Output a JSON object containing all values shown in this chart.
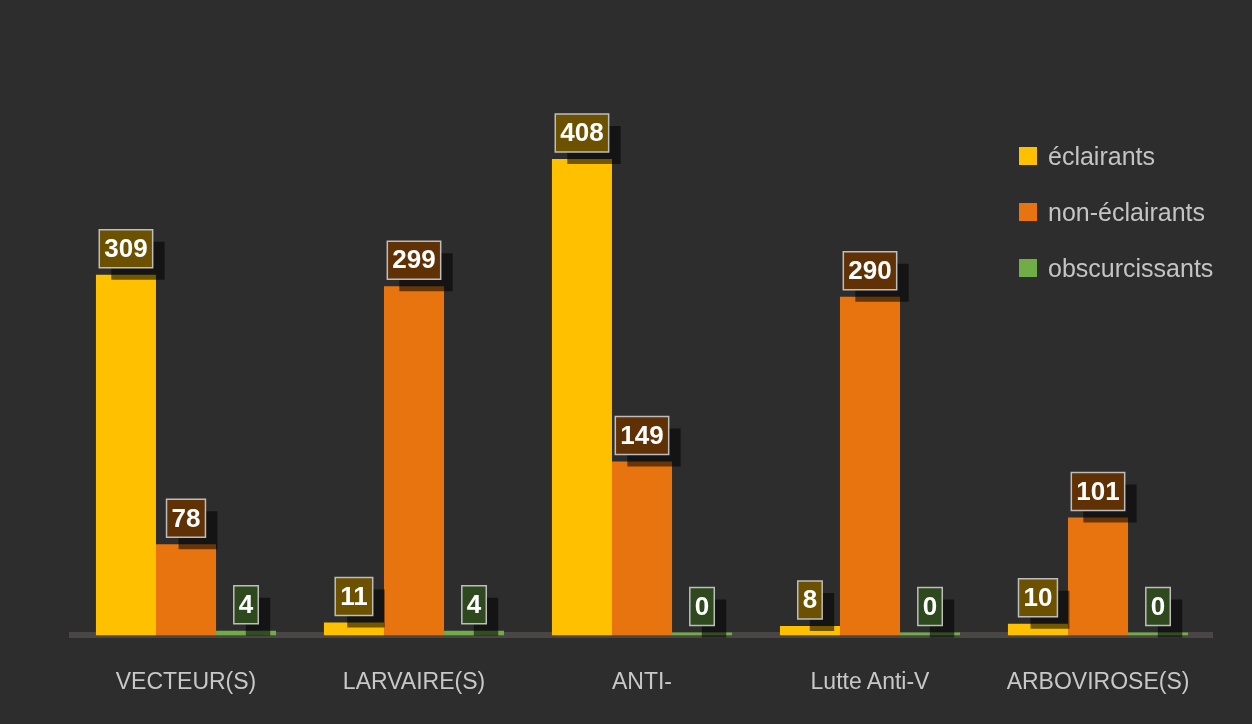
{
  "chart_data": {
    "type": "bar",
    "categories": [
      "VECTEUR(S)",
      "LARVAIRE(S)",
      "ANTI-",
      "Lutte Anti-V",
      "ARBOVIROSE(S)"
    ],
    "series": [
      {
        "name": "éclairants",
        "color": "#ffc000",
        "values": [
          309,
          11,
          408,
          8,
          10
        ]
      },
      {
        "name": "non-éclairants",
        "color": "#e8740f",
        "values": [
          78,
          299,
          149,
          290,
          101
        ]
      },
      {
        "name": "obscurcissants",
        "color": "#70ad47",
        "values": [
          4,
          4,
          0,
          0,
          0
        ]
      }
    ],
    "data_labels": true,
    "legend": "top right",
    "grid": false,
    "tick_labels": "x"
  }
}
